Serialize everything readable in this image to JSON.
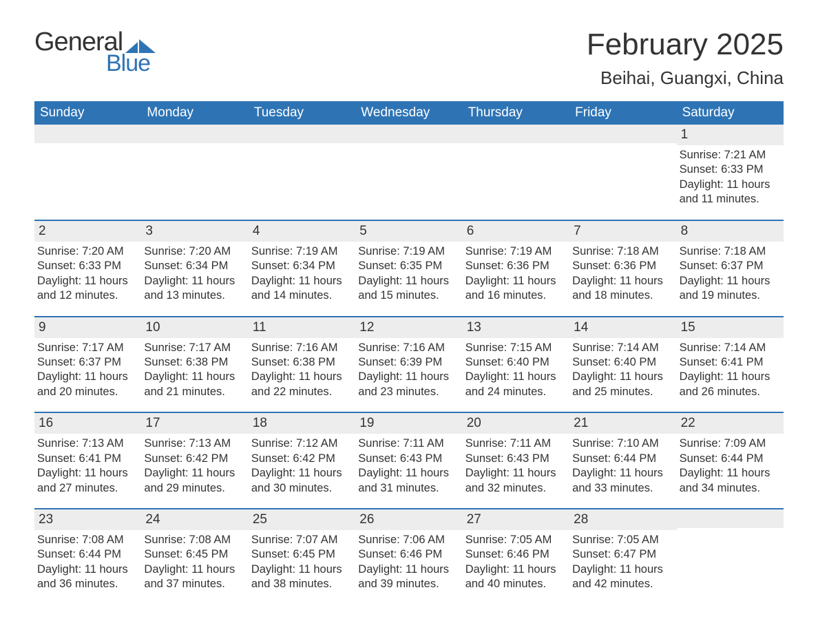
{
  "logo": {
    "text1": "General",
    "text2": "Blue",
    "brand_color": "#2e74b5"
  },
  "title": "February 2025",
  "location": "Beihai, Guangxi, China",
  "colors": {
    "header_bg": "#2e74b5",
    "header_text": "#ffffff",
    "row_divider": "#2e74b5",
    "daynum_bg": "#ededed",
    "body_text": "#333333",
    "page_bg": "#ffffff"
  },
  "fonts": {
    "title_pt": 44,
    "location_pt": 26,
    "dow_pt": 19,
    "daynum_pt": 19,
    "body_pt": 16.5
  },
  "days_of_week": [
    "Sunday",
    "Monday",
    "Tuesday",
    "Wednesday",
    "Thursday",
    "Friday",
    "Saturday"
  ],
  "leading_blanks": 6,
  "trailing_blanks": 1,
  "days": [
    {
      "n": "1",
      "sunrise": "Sunrise: 7:21 AM",
      "sunset": "Sunset: 6:33 PM",
      "daylight": "Daylight: 11 hours and 11 minutes."
    },
    {
      "n": "2",
      "sunrise": "Sunrise: 7:20 AM",
      "sunset": "Sunset: 6:33 PM",
      "daylight": "Daylight: 11 hours and 12 minutes."
    },
    {
      "n": "3",
      "sunrise": "Sunrise: 7:20 AM",
      "sunset": "Sunset: 6:34 PM",
      "daylight": "Daylight: 11 hours and 13 minutes."
    },
    {
      "n": "4",
      "sunrise": "Sunrise: 7:19 AM",
      "sunset": "Sunset: 6:34 PM",
      "daylight": "Daylight: 11 hours and 14 minutes."
    },
    {
      "n": "5",
      "sunrise": "Sunrise: 7:19 AM",
      "sunset": "Sunset: 6:35 PM",
      "daylight": "Daylight: 11 hours and 15 minutes."
    },
    {
      "n": "6",
      "sunrise": "Sunrise: 7:19 AM",
      "sunset": "Sunset: 6:36 PM",
      "daylight": "Daylight: 11 hours and 16 minutes."
    },
    {
      "n": "7",
      "sunrise": "Sunrise: 7:18 AM",
      "sunset": "Sunset: 6:36 PM",
      "daylight": "Daylight: 11 hours and 18 minutes."
    },
    {
      "n": "8",
      "sunrise": "Sunrise: 7:18 AM",
      "sunset": "Sunset: 6:37 PM",
      "daylight": "Daylight: 11 hours and 19 minutes."
    },
    {
      "n": "9",
      "sunrise": "Sunrise: 7:17 AM",
      "sunset": "Sunset: 6:37 PM",
      "daylight": "Daylight: 11 hours and 20 minutes."
    },
    {
      "n": "10",
      "sunrise": "Sunrise: 7:17 AM",
      "sunset": "Sunset: 6:38 PM",
      "daylight": "Daylight: 11 hours and 21 minutes."
    },
    {
      "n": "11",
      "sunrise": "Sunrise: 7:16 AM",
      "sunset": "Sunset: 6:38 PM",
      "daylight": "Daylight: 11 hours and 22 minutes."
    },
    {
      "n": "12",
      "sunrise": "Sunrise: 7:16 AM",
      "sunset": "Sunset: 6:39 PM",
      "daylight": "Daylight: 11 hours and 23 minutes."
    },
    {
      "n": "13",
      "sunrise": "Sunrise: 7:15 AM",
      "sunset": "Sunset: 6:40 PM",
      "daylight": "Daylight: 11 hours and 24 minutes."
    },
    {
      "n": "14",
      "sunrise": "Sunrise: 7:14 AM",
      "sunset": "Sunset: 6:40 PM",
      "daylight": "Daylight: 11 hours and 25 minutes."
    },
    {
      "n": "15",
      "sunrise": "Sunrise: 7:14 AM",
      "sunset": "Sunset: 6:41 PM",
      "daylight": "Daylight: 11 hours and 26 minutes."
    },
    {
      "n": "16",
      "sunrise": "Sunrise: 7:13 AM",
      "sunset": "Sunset: 6:41 PM",
      "daylight": "Daylight: 11 hours and 27 minutes."
    },
    {
      "n": "17",
      "sunrise": "Sunrise: 7:13 AM",
      "sunset": "Sunset: 6:42 PM",
      "daylight": "Daylight: 11 hours and 29 minutes."
    },
    {
      "n": "18",
      "sunrise": "Sunrise: 7:12 AM",
      "sunset": "Sunset: 6:42 PM",
      "daylight": "Daylight: 11 hours and 30 minutes."
    },
    {
      "n": "19",
      "sunrise": "Sunrise: 7:11 AM",
      "sunset": "Sunset: 6:43 PM",
      "daylight": "Daylight: 11 hours and 31 minutes."
    },
    {
      "n": "20",
      "sunrise": "Sunrise: 7:11 AM",
      "sunset": "Sunset: 6:43 PM",
      "daylight": "Daylight: 11 hours and 32 minutes."
    },
    {
      "n": "21",
      "sunrise": "Sunrise: 7:10 AM",
      "sunset": "Sunset: 6:44 PM",
      "daylight": "Daylight: 11 hours and 33 minutes."
    },
    {
      "n": "22",
      "sunrise": "Sunrise: 7:09 AM",
      "sunset": "Sunset: 6:44 PM",
      "daylight": "Daylight: 11 hours and 34 minutes."
    },
    {
      "n": "23",
      "sunrise": "Sunrise: 7:08 AM",
      "sunset": "Sunset: 6:44 PM",
      "daylight": "Daylight: 11 hours and 36 minutes."
    },
    {
      "n": "24",
      "sunrise": "Sunrise: 7:08 AM",
      "sunset": "Sunset: 6:45 PM",
      "daylight": "Daylight: 11 hours and 37 minutes."
    },
    {
      "n": "25",
      "sunrise": "Sunrise: 7:07 AM",
      "sunset": "Sunset: 6:45 PM",
      "daylight": "Daylight: 11 hours and 38 minutes."
    },
    {
      "n": "26",
      "sunrise": "Sunrise: 7:06 AM",
      "sunset": "Sunset: 6:46 PM",
      "daylight": "Daylight: 11 hours and 39 minutes."
    },
    {
      "n": "27",
      "sunrise": "Sunrise: 7:05 AM",
      "sunset": "Sunset: 6:46 PM",
      "daylight": "Daylight: 11 hours and 40 minutes."
    },
    {
      "n": "28",
      "sunrise": "Sunrise: 7:05 AM",
      "sunset": "Sunset: 6:47 PM",
      "daylight": "Daylight: 11 hours and 42 minutes."
    }
  ]
}
